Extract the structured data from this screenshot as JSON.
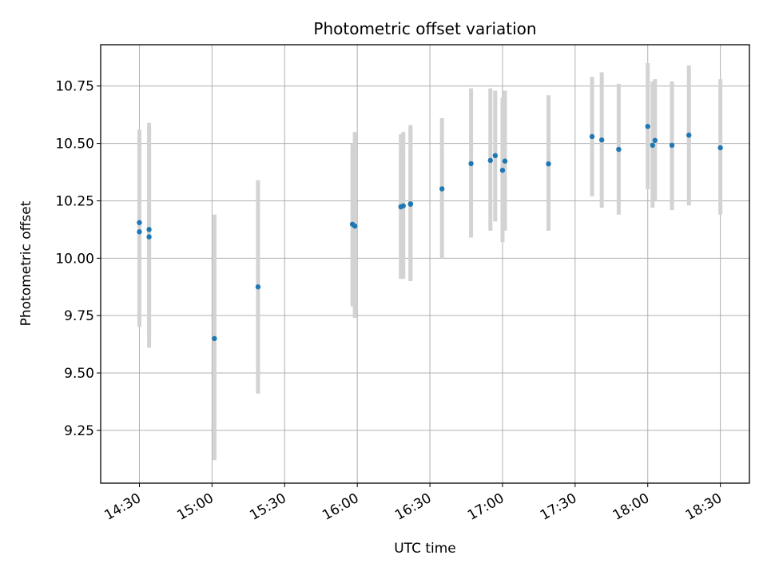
{
  "chart_data": {
    "type": "scatter",
    "title": "Photometric offset variation",
    "xlabel": "UTC time",
    "ylabel": "Photometric offset",
    "x_ticks": [
      "14:30",
      "15:00",
      "15:30",
      "16:00",
      "16:30",
      "17:00",
      "17:30",
      "18:00",
      "18:30"
    ],
    "y_ticks": [
      "9.25",
      "9.50",
      "9.75",
      "10.00",
      "10.25",
      "10.50",
      "10.75"
    ],
    "xlim": [
      "14:14",
      "18:42"
    ],
    "ylim": [
      9.02,
      10.93
    ],
    "grid": true,
    "colors": {
      "point": "#1f77b4",
      "errorbar": "#d3d3d3",
      "grid": "#b0b0b0"
    },
    "points": [
      {
        "x": "14:30",
        "y": 10.155,
        "low": 9.7,
        "high": 10.56
      },
      {
        "x": "14:30",
        "y": 10.115,
        "low": 9.72,
        "high": 10.52
      },
      {
        "x": "14:34",
        "y": 10.125,
        "low": 9.66,
        "high": 10.59
      },
      {
        "x": "14:34",
        "y": 10.093,
        "low": 9.61,
        "high": 10.57
      },
      {
        "x": "15:01",
        "y": 9.65,
        "low": 9.12,
        "high": 10.19
      },
      {
        "x": "15:19",
        "y": 9.875,
        "low": 9.41,
        "high": 10.34
      },
      {
        "x": "15:58",
        "y": 10.148,
        "low": 9.79,
        "high": 10.5
      },
      {
        "x": "15:59",
        "y": 10.14,
        "low": 9.74,
        "high": 10.55
      },
      {
        "x": "16:18",
        "y": 10.224,
        "low": 9.91,
        "high": 10.54
      },
      {
        "x": "16:19",
        "y": 10.228,
        "low": 9.91,
        "high": 10.55
      },
      {
        "x": "16:22",
        "y": 10.235,
        "low": 9.9,
        "high": 10.57
      },
      {
        "x": "16:22",
        "y": 10.237,
        "low": 9.9,
        "high": 10.58
      },
      {
        "x": "16:35",
        "y": 10.302,
        "low": 10.0,
        "high": 10.61
      },
      {
        "x": "16:47",
        "y": 10.412,
        "low": 10.09,
        "high": 10.74
      },
      {
        "x": "16:55",
        "y": 10.426,
        "low": 10.12,
        "high": 10.74
      },
      {
        "x": "16:57",
        "y": 10.447,
        "low": 10.16,
        "high": 10.73
      },
      {
        "x": "17:00",
        "y": 10.383,
        "low": 10.07,
        "high": 10.7
      },
      {
        "x": "17:01",
        "y": 10.423,
        "low": 10.12,
        "high": 10.73
      },
      {
        "x": "17:19",
        "y": 10.411,
        "low": 10.12,
        "high": 10.71
      },
      {
        "x": "17:37",
        "y": 10.53,
        "low": 10.27,
        "high": 10.79
      },
      {
        "x": "17:41",
        "y": 10.515,
        "low": 10.22,
        "high": 10.81
      },
      {
        "x": "17:48",
        "y": 10.474,
        "low": 10.19,
        "high": 10.76
      },
      {
        "x": "18:00",
        "y": 10.574,
        "low": 10.3,
        "high": 10.85
      },
      {
        "x": "18:02",
        "y": 10.492,
        "low": 10.22,
        "high": 10.77
      },
      {
        "x": "18:03",
        "y": 10.513,
        "low": 10.25,
        "high": 10.78
      },
      {
        "x": "18:10",
        "y": 10.492,
        "low": 10.21,
        "high": 10.77
      },
      {
        "x": "18:17",
        "y": 10.536,
        "low": 10.23,
        "high": 10.84
      },
      {
        "x": "18:30",
        "y": 10.481,
        "low": 10.19,
        "high": 10.78
      }
    ]
  }
}
